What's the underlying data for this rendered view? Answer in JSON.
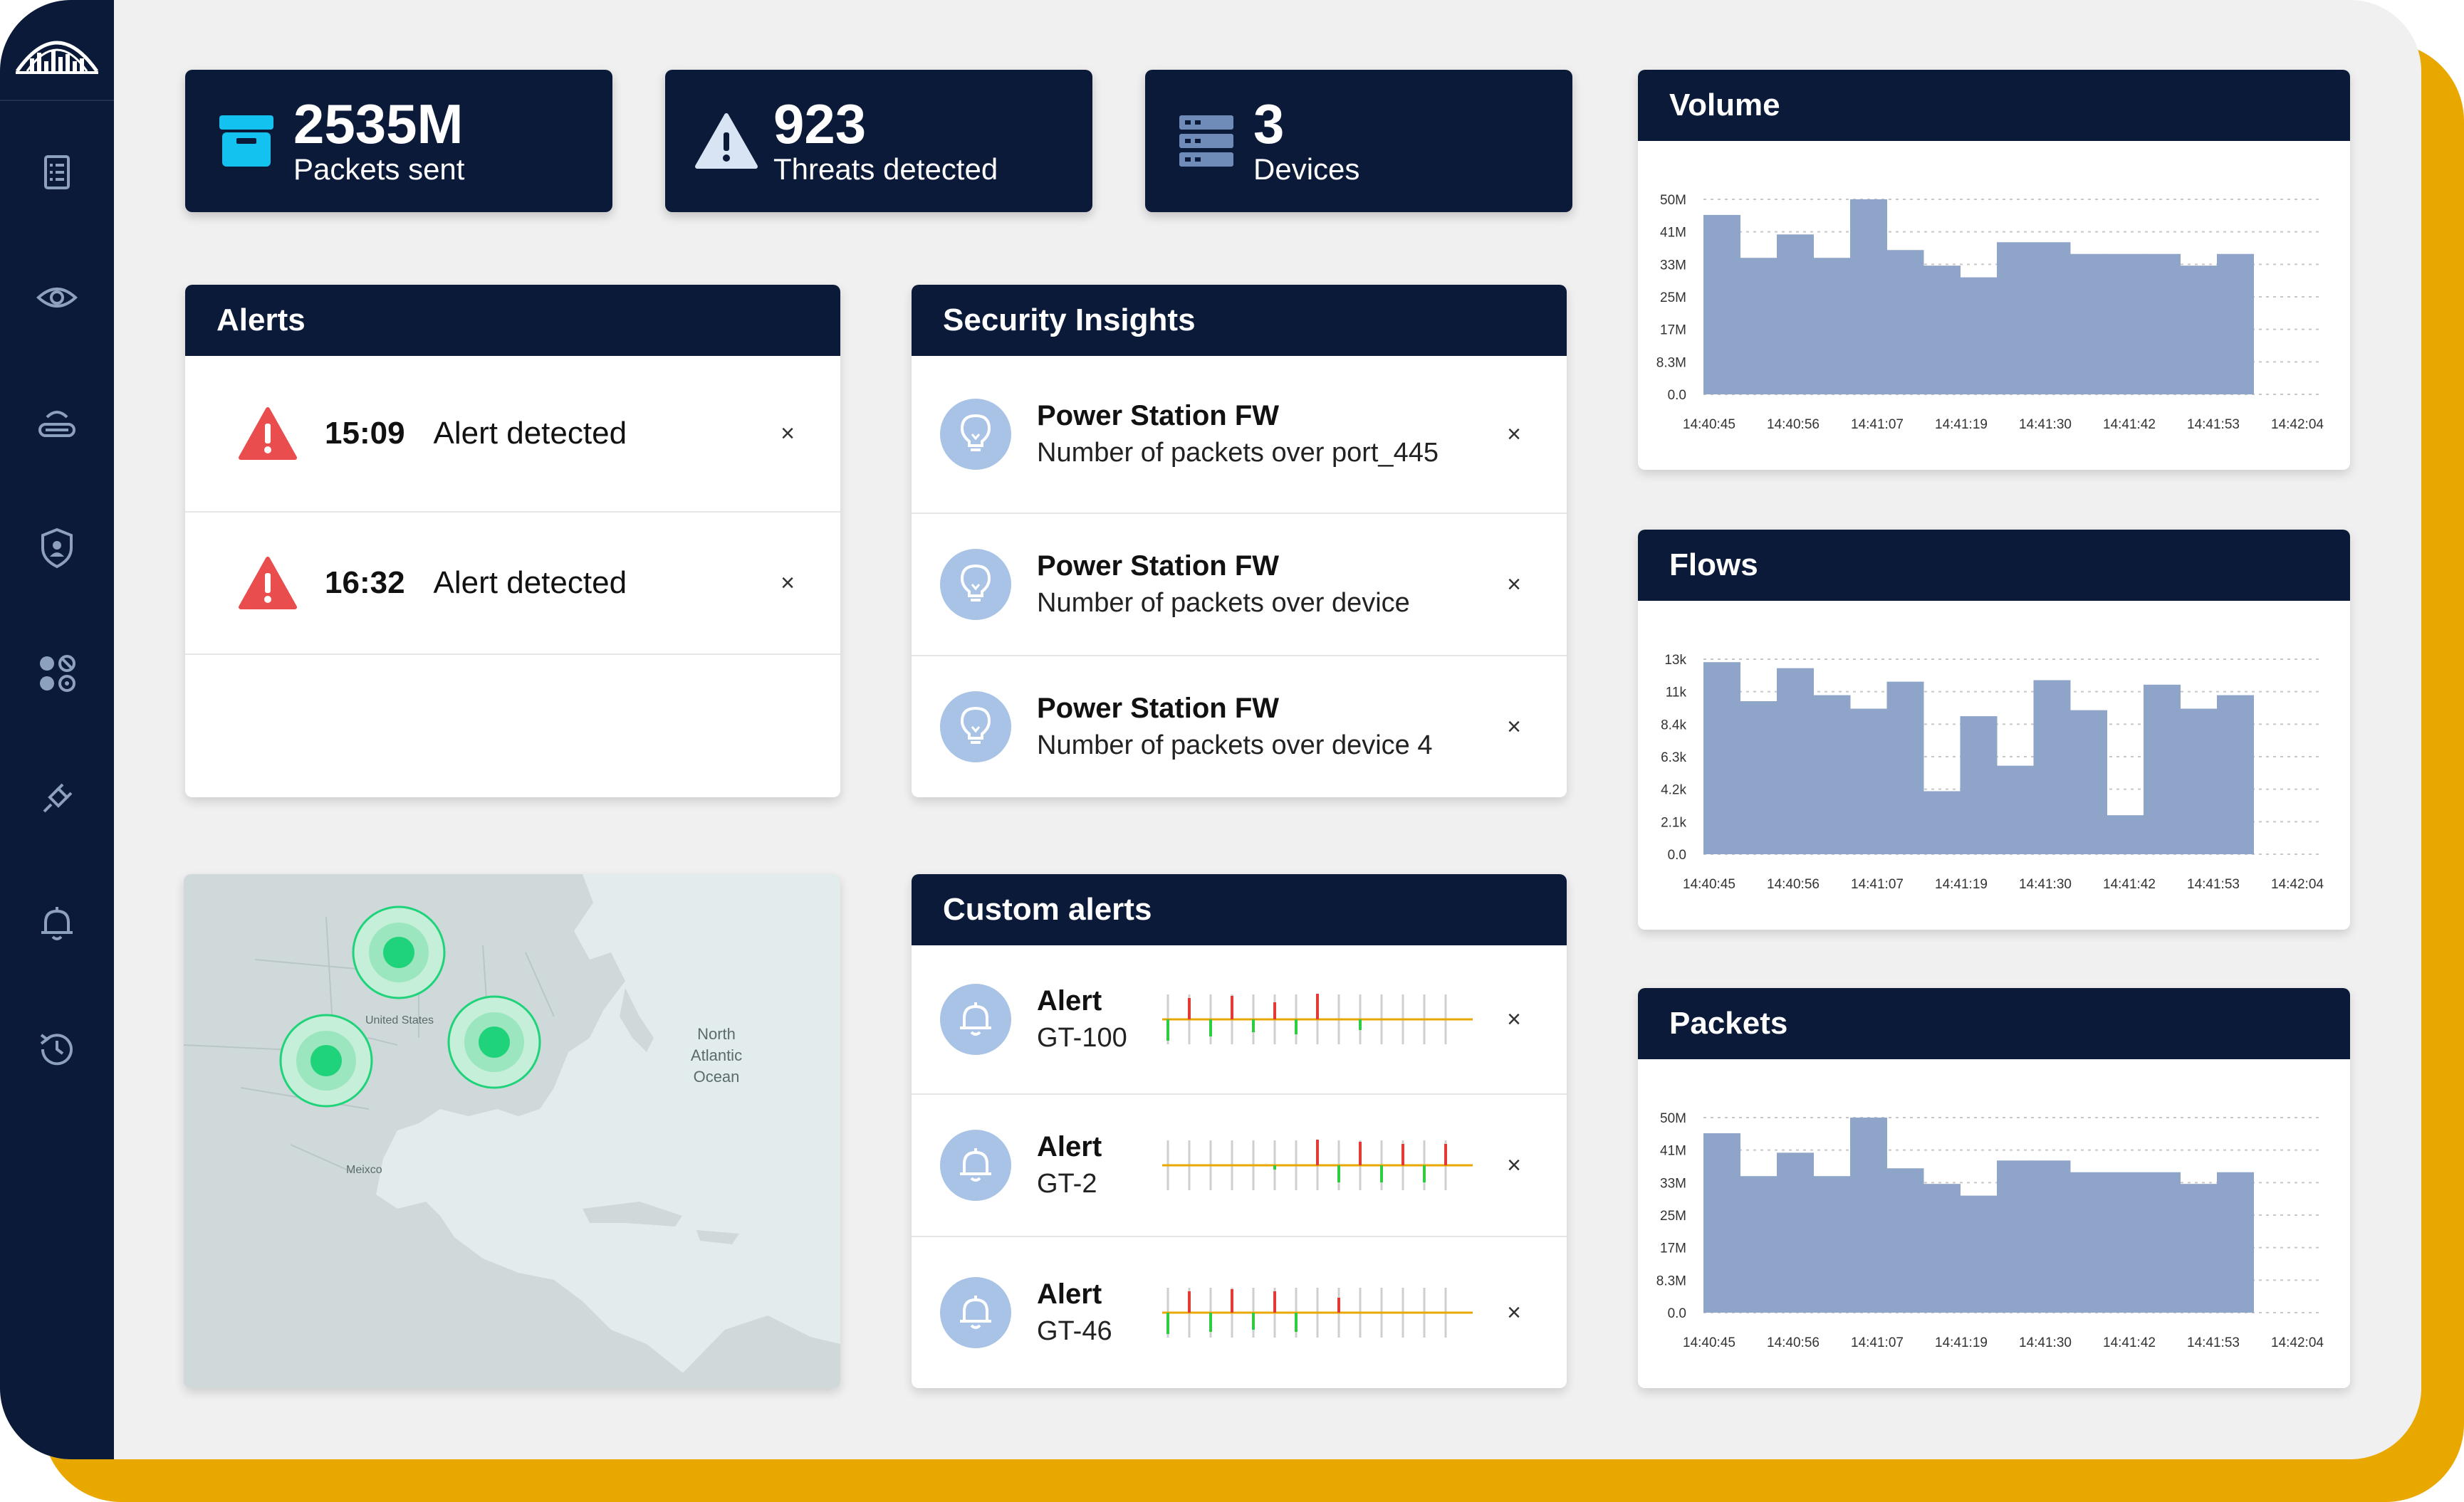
{
  "kpis": [
    {
      "value": "2535M",
      "label": "Packets sent",
      "icon": "box-icon"
    },
    {
      "value": "923",
      "label": "Threats detected",
      "icon": "warning-icon"
    },
    {
      "value": "3",
      "label": "Devices",
      "icon": "server-icon"
    }
  ],
  "alerts": {
    "title": "Alerts",
    "items": [
      {
        "time": "15:09",
        "text": "Alert detected"
      },
      {
        "time": "16:32",
        "text": "Alert detected"
      }
    ]
  },
  "insights": {
    "title": "Security Insights",
    "items": [
      {
        "title": "Power Station FW",
        "subtitle": "Number of packets over port_445"
      },
      {
        "title": "Power Station FW",
        "subtitle": "Number of packets over device"
      },
      {
        "title": "Power Station FW",
        "subtitle": "Number of packets over device 4"
      }
    ]
  },
  "custom_alerts": {
    "title": "Custom alerts",
    "items": [
      {
        "title": "Alert",
        "subtitle": "GT-100",
        "spark": [
          -0.5,
          0.5,
          -0.4,
          0.55,
          -0.3,
          0.4,
          -0.35,
          0.6,
          0.0,
          -0.25,
          0,
          0,
          0,
          0
        ]
      },
      {
        "title": "Alert",
        "subtitle": "GT-2",
        "spark": [
          0,
          0,
          0,
          0,
          0,
          -0.1,
          0,
          0.6,
          -0.4,
          0.55,
          -0.4,
          0.5,
          -0.4,
          0.5
        ]
      },
      {
        "title": "Alert",
        "subtitle": "GT-46",
        "spark": [
          -0.5,
          0.5,
          -0.45,
          0.55,
          -0.4,
          0.5,
          -0.45,
          0.0,
          0.35,
          0,
          0,
          0,
          0,
          0
        ]
      }
    ],
    "colors": {
      "up": "#e53935",
      "down": "#2ecc40",
      "baseline": "#e9a800"
    }
  },
  "map": {
    "labels": {
      "us": "United States",
      "mexico": "Meixco",
      "ocean_l1": "North",
      "ocean_l2": "Atlantic",
      "ocean_l3": "Ocean"
    },
    "marker_color": "#1fd37a"
  },
  "chart_data": [
    {
      "type": "bar",
      "title": "Volume",
      "y_ticks": [
        "50M",
        "41M",
        "33M",
        "25M",
        "17M",
        "8.3M",
        "0.0"
      ],
      "ylim": [
        0,
        50
      ],
      "x_ticks": [
        "14:40:45",
        "14:40:56",
        "14:41:07",
        "14:41:19",
        "14:41:30",
        "14:41:42",
        "14:41:53",
        "14:42:04"
      ],
      "values": [
        46,
        35,
        41,
        35,
        50,
        37,
        33,
        30,
        39,
        39,
        36,
        36,
        36,
        33,
        36
      ],
      "grid": true,
      "color": "#8ea4c8"
    },
    {
      "type": "bar",
      "title": "Flows",
      "y_ticks": [
        "13k",
        "11k",
        "8.4k",
        "6.3k",
        "4.2k",
        "2.1k",
        "0.0"
      ],
      "ylim": [
        0,
        13
      ],
      "x_ticks": [
        "14:40:45",
        "14:40:56",
        "14:41:07",
        "14:41:19",
        "14:41:30",
        "14:41:42",
        "14:41:53",
        "14:42:04"
      ],
      "values": [
        12.8,
        10.2,
        12.4,
        10.6,
        9.7,
        11.5,
        4.2,
        9.2,
        5.9,
        11.6,
        9.6,
        2.6,
        11.3,
        9.7,
        10.6
      ],
      "grid": true,
      "color": "#8ea4c8"
    },
    {
      "type": "bar",
      "title": "Packets",
      "y_ticks": [
        "50M",
        "41M",
        "33M",
        "25M",
        "17M",
        "8.3M",
        "0.0"
      ],
      "ylim": [
        0,
        50
      ],
      "x_ticks": [
        "14:40:45",
        "14:40:56",
        "14:41:07",
        "14:41:19",
        "14:41:30",
        "14:41:42",
        "14:41:53",
        "14:42:04"
      ],
      "values": [
        46,
        35,
        41,
        35,
        50,
        37,
        33,
        30,
        39,
        39,
        36,
        36,
        36,
        33,
        36
      ],
      "grid": true,
      "color": "#8ea4c8"
    }
  ]
}
